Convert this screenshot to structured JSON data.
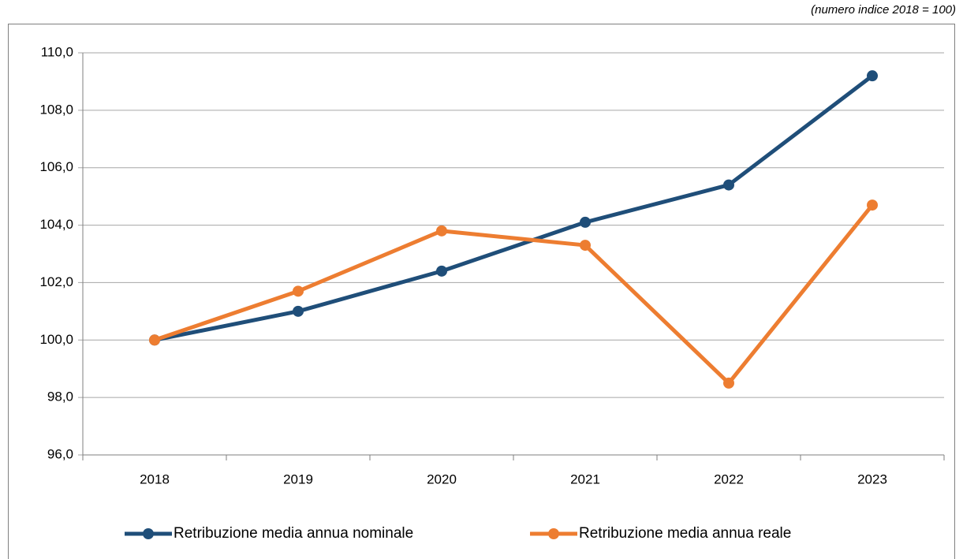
{
  "chart_data": {
    "type": "line",
    "subtitle": "(numero indice 2018 = 100)",
    "categories": [
      "2018",
      "2019",
      "2020",
      "2021",
      "2022",
      "2023"
    ],
    "series": [
      {
        "name": "Retribuzione media annua nominale",
        "color": "#1f4e79",
        "values": [
          100.0,
          101.0,
          102.4,
          104.1,
          105.4,
          109.2
        ]
      },
      {
        "name": "Retribuzione media annua reale",
        "color": "#ed7d31",
        "values": [
          100.0,
          101.7,
          103.8,
          103.3,
          98.5,
          104.7
        ]
      }
    ],
    "ylim": [
      96,
      110
    ],
    "yticks": [
      {
        "value": 96,
        "label": "96,0"
      },
      {
        "value": 98,
        "label": "98,0"
      },
      {
        "value": 100,
        "label": "100,0"
      },
      {
        "value": 102,
        "label": "102,0"
      },
      {
        "value": 104,
        "label": "104,0"
      },
      {
        "value": 106,
        "label": "106,0"
      },
      {
        "value": 108,
        "label": "108,0"
      },
      {
        "value": 110,
        "label": "110,0"
      }
    ],
    "grid": true
  }
}
